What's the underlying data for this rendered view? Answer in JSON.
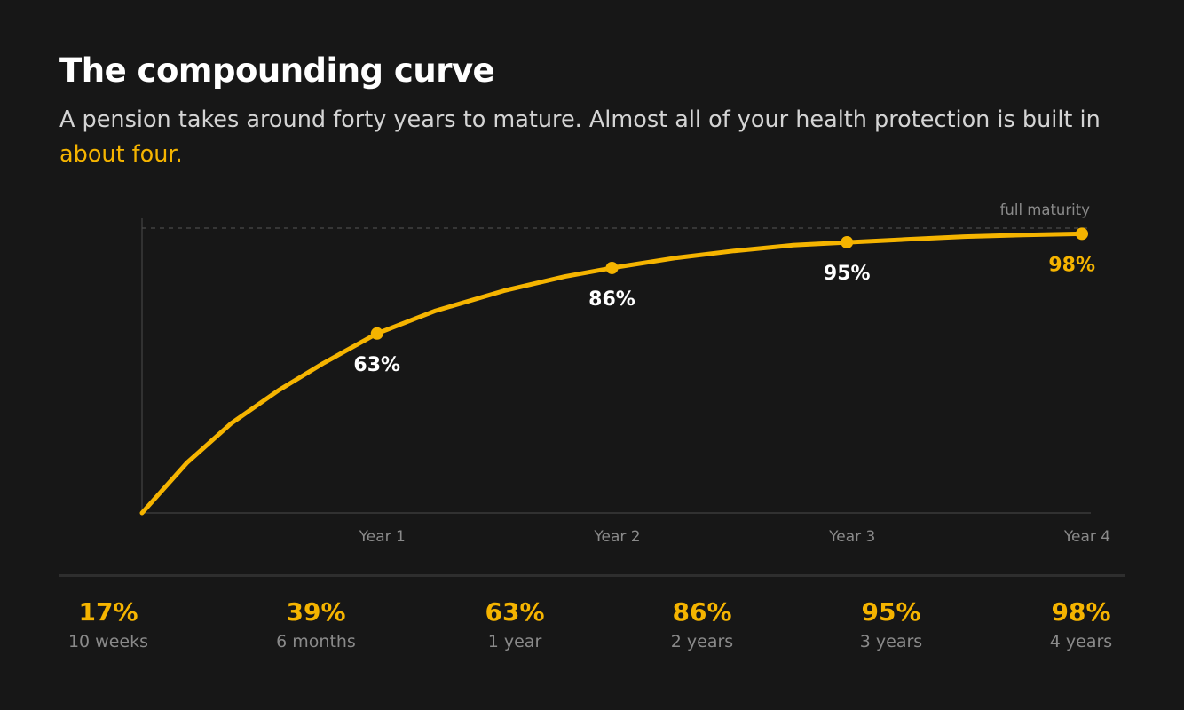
{
  "header": {
    "title": "The compounding curve",
    "subtitle_lead": "A pension takes around forty years to mature. Almost all of your health protection is built in ",
    "subtitle_highlight": "about four."
  },
  "colors": {
    "accent": "#f5b400",
    "background": "#171717",
    "axis": "#3a3a3a",
    "reference_line": "#4a4a4a"
  },
  "chart_data": {
    "type": "line",
    "title": "",
    "xlabel": "",
    "ylabel": "",
    "xlim": [
      0,
      4
    ],
    "ylim": [
      0,
      100
    ],
    "grid": false,
    "reference_line": {
      "value": 100,
      "label": "full maturity"
    },
    "x_ticks": [
      {
        "value": 1,
        "label": "Year 1"
      },
      {
        "value": 2,
        "label": "Year 2"
      },
      {
        "value": 3,
        "label": "Year 3"
      },
      {
        "value": 4,
        "label": "Year 4"
      }
    ],
    "series": [
      {
        "x": [
          0,
          0.19,
          0.38,
          0.58,
          0.77,
          1.0,
          1.25,
          1.54,
          1.8,
          2.0,
          2.27,
          2.52,
          2.77,
          3.0,
          3.25,
          3.5,
          3.75,
          4.0
        ],
        "y": [
          0,
          17.5,
          31.5,
          43,
          52.5,
          63,
          71,
          78,
          83,
          86,
          89.5,
          92,
          94,
          95,
          96,
          97,
          97.6,
          98
        ]
      }
    ],
    "markers": [
      {
        "x": 1,
        "y": 63,
        "label": "63%"
      },
      {
        "x": 2,
        "y": 86,
        "label": "86%"
      },
      {
        "x": 3,
        "y": 95,
        "label": "95%"
      },
      {
        "x": 4,
        "y": 98,
        "label": "98%"
      }
    ]
  },
  "stats": [
    {
      "value": "17%",
      "label": "10 weeks"
    },
    {
      "value": "39%",
      "label": "6 months"
    },
    {
      "value": "63%",
      "label": "1 year"
    },
    {
      "value": "86%",
      "label": "2 years"
    },
    {
      "value": "95%",
      "label": "3 years"
    },
    {
      "value": "98%",
      "label": "4 years"
    }
  ]
}
